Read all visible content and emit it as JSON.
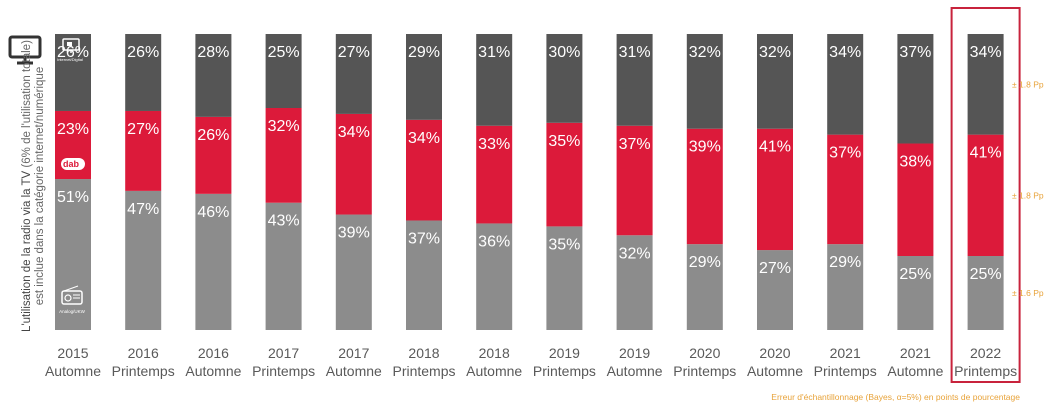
{
  "chart_data": {
    "type": "bar",
    "stacked": true,
    "percent": true,
    "categories": [
      [
        "2015",
        "Automne"
      ],
      [
        "2016",
        "Printemps"
      ],
      [
        "2016",
        "Automne"
      ],
      [
        "2017",
        "Printemps"
      ],
      [
        "2017",
        "Automne"
      ],
      [
        "2018",
        "Printemps"
      ],
      [
        "2018",
        "Automne"
      ],
      [
        "2019",
        "Printemps"
      ],
      [
        "2019",
        "Automne"
      ],
      [
        "2020",
        "Printemps"
      ],
      [
        "2020",
        "Automne"
      ],
      [
        "2021",
        "Printemps"
      ],
      [
        "2021",
        "Automne"
      ],
      [
        "2022",
        "Printemps"
      ]
    ],
    "series": [
      {
        "name": "Analog/UKW",
        "color": "#8c8c8c",
        "values": [
          51,
          47,
          46,
          43,
          39,
          37,
          36,
          35,
          32,
          29,
          27,
          29,
          25,
          25
        ]
      },
      {
        "name": "",
        "color": "#dc1a3a",
        "values": [
          23,
          27,
          26,
          32,
          34,
          34,
          33,
          35,
          37,
          39,
          41,
          37,
          38,
          41
        ]
      },
      {
        "name": "Internet/Digital",
        "color": "#555555",
        "values": [
          26,
          26,
          28,
          25,
          27,
          29,
          31,
          30,
          31,
          32,
          32,
          34,
          37,
          34
        ]
      }
    ],
    "ylabel_line1_bold": "L'utilisation de la radio via la TV",
    "ylabel_line1_rest": " (6% de l'utilisation totale)",
    "ylabel_line2": "est inclue dans la catégorie internet/numérique",
    "highlight_index": 13,
    "error_margins": [
      "± 1.6 Pp",
      "± 1.8 Pp",
      "± 1.8 Pp"
    ],
    "footnote": "Erreur d'échantillonnage (Bayes, α=5%) en points de pourcentage",
    "icon_labels": {
      "internet": "Internet/Digital",
      "dab": "dab",
      "analog": "Analog/UKW"
    }
  }
}
